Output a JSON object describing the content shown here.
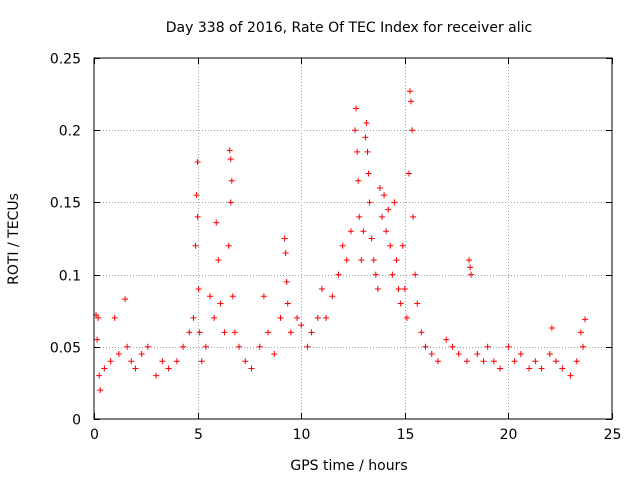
{
  "chart_data": {
    "type": "scatter",
    "title": "Day 338 of 2016, Rate Of TEC Index for receiver alic",
    "xlabel": "GPS time / hours",
    "ylabel": "ROTI / TECUs",
    "xlim": [
      0,
      25
    ],
    "ylim": [
      0,
      0.25
    ],
    "xticks": [
      {
        "value": 0,
        "label": "0"
      },
      {
        "value": 5,
        "label": "5"
      },
      {
        "value": 10,
        "label": "10"
      },
      {
        "value": 15,
        "label": "15"
      },
      {
        "value": 20,
        "label": "20"
      },
      {
        "value": 25,
        "label": "25"
      }
    ],
    "yticks": [
      {
        "value": 0,
        "label": "0"
      },
      {
        "value": 0.05,
        "label": "0.05"
      },
      {
        "value": 0.1,
        "label": "0.1"
      },
      {
        "value": 0.15,
        "label": "0.15"
      },
      {
        "value": 0.2,
        "label": "0.2"
      },
      {
        "value": 0.25,
        "label": "0.25"
      }
    ],
    "grid": true,
    "marker": "+",
    "color": "#ff0000",
    "series": [
      {
        "name": "ROTI",
        "x": [
          0.1,
          0.15,
          0.2,
          0.25,
          0.3,
          0.5,
          0.8,
          1.0,
          1.2,
          1.5,
          1.6,
          1.8,
          2.0,
          2.3,
          2.6,
          3.0,
          3.3,
          3.6,
          4.0,
          4.3,
          4.6,
          4.8,
          4.9,
          4.95,
          5.0,
          5.0,
          5.05,
          5.1,
          5.2,
          5.4,
          5.6,
          5.8,
          5.9,
          6.0,
          6.1,
          6.3,
          6.5,
          6.55,
          6.6,
          6.6,
          6.65,
          6.7,
          6.8,
          7.0,
          7.3,
          7.6,
          8.0,
          8.2,
          8.4,
          8.7,
          9.0,
          9.2,
          9.25,
          9.3,
          9.35,
          9.5,
          9.8,
          10.0,
          10.3,
          10.5,
          10.8,
          11.0,
          11.2,
          11.5,
          11.8,
          12.0,
          12.2,
          12.4,
          12.6,
          12.65,
          12.7,
          12.75,
          12.8,
          12.9,
          13.0,
          13.1,
          13.15,
          13.2,
          13.25,
          13.3,
          13.4,
          13.5,
          13.6,
          13.7,
          13.8,
          13.9,
          14.0,
          14.1,
          14.2,
          14.3,
          14.4,
          14.5,
          14.6,
          14.7,
          14.8,
          14.9,
          15.0,
          15.1,
          15.2,
          15.25,
          15.3,
          15.35,
          15.4,
          15.5,
          15.6,
          15.8,
          16.0,
          16.3,
          16.6,
          17.0,
          17.3,
          17.6,
          18.0,
          18.1,
          18.15,
          18.2,
          18.5,
          18.8,
          19.0,
          19.3,
          19.6,
          20.0,
          20.3,
          20.6,
          21.0,
          21.3,
          21.6,
          22.0,
          22.1,
          22.3,
          22.6,
          23.0,
          23.3,
          23.5,
          23.6,
          23.7
        ],
        "y": [
          0.072,
          0.055,
          0.07,
          0.03,
          0.02,
          0.035,
          0.04,
          0.07,
          0.045,
          0.083,
          0.05,
          0.04,
          0.035,
          0.045,
          0.05,
          0.03,
          0.04,
          0.035,
          0.04,
          0.05,
          0.06,
          0.07,
          0.12,
          0.155,
          0.178,
          0.14,
          0.09,
          0.06,
          0.04,
          0.05,
          0.085,
          0.07,
          0.136,
          0.11,
          0.08,
          0.06,
          0.12,
          0.186,
          0.18,
          0.15,
          0.165,
          0.085,
          0.06,
          0.05,
          0.04,
          0.035,
          0.05,
          0.085,
          0.06,
          0.045,
          0.07,
          0.125,
          0.115,
          0.095,
          0.08,
          0.06,
          0.07,
          0.065,
          0.05,
          0.06,
          0.07,
          0.09,
          0.07,
          0.085,
          0.1,
          0.12,
          0.11,
          0.13,
          0.2,
          0.215,
          0.185,
          0.165,
          0.14,
          0.11,
          0.13,
          0.195,
          0.205,
          0.185,
          0.17,
          0.15,
          0.125,
          0.11,
          0.1,
          0.09,
          0.16,
          0.14,
          0.155,
          0.13,
          0.145,
          0.12,
          0.1,
          0.15,
          0.11,
          0.09,
          0.08,
          0.12,
          0.09,
          0.07,
          0.17,
          0.227,
          0.22,
          0.2,
          0.14,
          0.1,
          0.08,
          0.06,
          0.05,
          0.045,
          0.04,
          0.055,
          0.05,
          0.045,
          0.04,
          0.11,
          0.105,
          0.1,
          0.045,
          0.04,
          0.05,
          0.04,
          0.035,
          0.05,
          0.04,
          0.045,
          0.035,
          0.04,
          0.035,
          0.045,
          0.063,
          0.04,
          0.035,
          0.03,
          0.04,
          0.06,
          0.05,
          0.069
        ]
      }
    ]
  }
}
